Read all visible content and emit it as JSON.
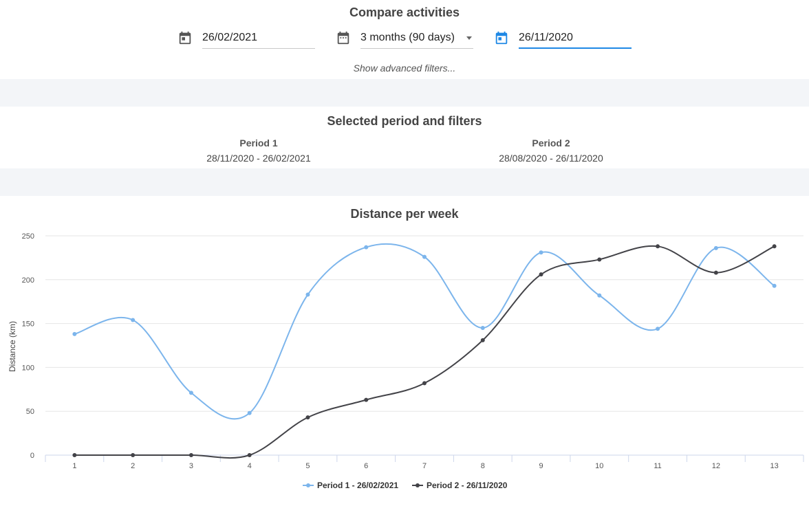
{
  "header": {
    "title": "Compare activities",
    "end_date": "26/02/2021",
    "range": "3 months (90 days)",
    "compare_date": "26/11/2020",
    "advanced_link": "Show advanced filters..."
  },
  "selected": {
    "title": "Selected period and filters",
    "period1": {
      "label": "Period 1",
      "dates": "28/11/2020 - 26/02/2021"
    },
    "period2": {
      "label": "Period 2",
      "dates": "28/08/2020 - 26/11/2020"
    }
  },
  "colors": {
    "accent": "#1e88e5",
    "series1": "#7cb5ec",
    "series2": "#434348",
    "band": "#f3f5f8"
  },
  "chart_data": {
    "type": "line",
    "title": "Distance per week",
    "ylabel": "Distance (km)",
    "xlabel": "",
    "ylim": [
      0,
      250
    ],
    "yticks": [
      0,
      50,
      100,
      150,
      200,
      250
    ],
    "categories": [
      "1",
      "2",
      "3",
      "4",
      "5",
      "6",
      "7",
      "8",
      "9",
      "10",
      "11",
      "12",
      "13"
    ],
    "grid": true,
    "legend": "bottom-center",
    "series": [
      {
        "name": "Period 1 - 26/02/2021",
        "color": "#7cb5ec",
        "values": [
          138,
          154,
          71,
          48,
          183,
          237,
          226,
          145,
          231,
          182,
          144,
          236,
          193
        ]
      },
      {
        "name": "Period 2 - 26/11/2020",
        "color": "#434348",
        "values": [
          0,
          0,
          0,
          0,
          43,
          63,
          82,
          131,
          206,
          223,
          238,
          208,
          238
        ]
      }
    ]
  }
}
